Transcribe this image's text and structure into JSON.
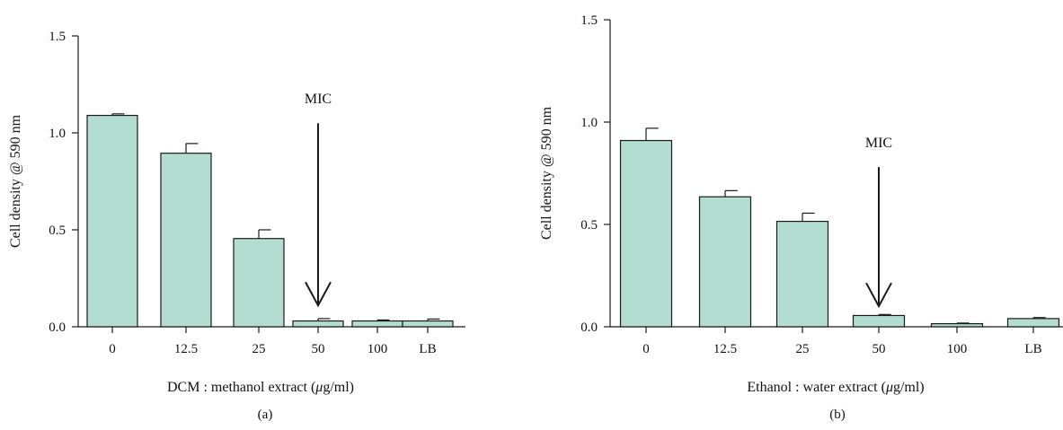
{
  "colors": {
    "bar_fill": "#b3ddd0",
    "bar_stroke": "#1a1a1a",
    "axis": "#1a1a1a"
  },
  "chart_data": [
    {
      "type": "bar",
      "panel_label": "(a)",
      "categories": [
        "0",
        "12.5",
        "25",
        "50",
        "100",
        "LB"
      ],
      "values": [
        1.09,
        0.895,
        0.455,
        0.03,
        0.03,
        0.03
      ],
      "error": [
        0.008,
        0.05,
        0.045,
        0.012,
        0.005,
        0.01
      ],
      "xlabel_prefix": "DCM : methanol extract (",
      "xlabel_mu": "μ",
      "xlabel_suffix": "g/ml)",
      "ylabel": "Cell density @ 590 nm",
      "ylim": [
        0,
        1.5
      ],
      "yticks": [
        0.0,
        0.5,
        1.0,
        1.5
      ],
      "ytick_labels": [
        "0.0",
        "0.5",
        "1.0",
        "1.5"
      ],
      "annotation": {
        "text": "MIC",
        "category": "50",
        "arrow_top": 1.05,
        "arrow_bottom": 0.11
      }
    },
    {
      "type": "bar",
      "panel_label": "(b)",
      "categories": [
        "0",
        "12.5",
        "25",
        "50",
        "100",
        "LB"
      ],
      "values": [
        0.91,
        0.635,
        0.515,
        0.055,
        0.015,
        0.04
      ],
      "error": [
        0.06,
        0.03,
        0.04,
        0.005,
        0.003,
        0.005
      ],
      "xlabel_prefix": "Ethanol : water extract (",
      "xlabel_mu": "μ",
      "xlabel_suffix": "g/ml)",
      "ylabel": "Cell density @ 590 nm",
      "ylim": [
        0,
        1.5
      ],
      "yticks": [
        0.0,
        0.5,
        1.0,
        1.5
      ],
      "ytick_labels": [
        "0.0",
        "0.5",
        "1.0",
        "1.5"
      ],
      "annotation": {
        "text": "MIC",
        "category": "50",
        "arrow_top": 0.78,
        "arrow_bottom": 0.1
      }
    }
  ]
}
